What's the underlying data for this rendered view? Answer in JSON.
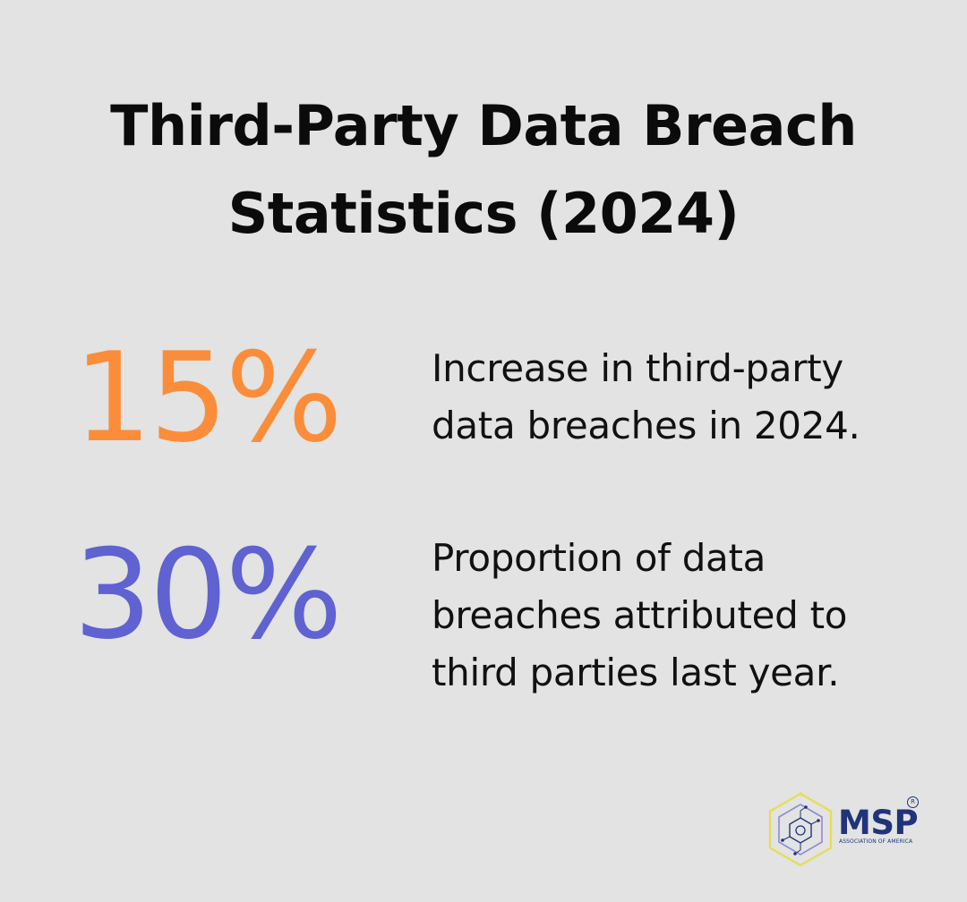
{
  "title": {
    "line1": "Third-Party Data Breach",
    "line2": "Statistics (2024)"
  },
  "stats": [
    {
      "value": "15%",
      "color": "#fb8d3a",
      "description_lines": [
        "Increase in third-party",
        "data breaches in 2024."
      ]
    },
    {
      "value": "30%",
      "color": "#5f62d0",
      "description_lines": [
        "Proportion of data",
        "breaches attributed to",
        "third parties last year."
      ]
    }
  ],
  "logo": {
    "name": "MSP",
    "subtitle": "ASSOCIATION OF AMERICA",
    "registered_mark": "R",
    "icon": "hexagon-circuit-logo-icon",
    "colors": {
      "text": "#21337a",
      "hex_outer": "#e6dd52",
      "hex_inner": "#8e8ad6"
    }
  },
  "colors": {
    "background": "#e2e3e2",
    "text": "#0b0b0b"
  }
}
